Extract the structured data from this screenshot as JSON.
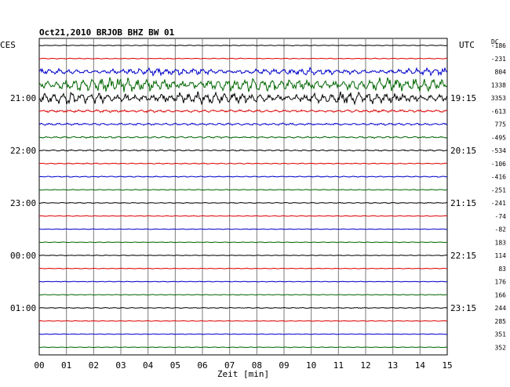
{
  "chart_data": {
    "type": "line",
    "title": "Oct21,2010   BRJOB BHZ BW 01",
    "xlabel": "Zeit [min]",
    "ylabel_left": "CES",
    "ylabel_right": "UTC",
    "dc_label": "DC",
    "x_ticks": [
      "00",
      "01",
      "02",
      "03",
      "04",
      "05",
      "06",
      "07",
      "08",
      "09",
      "10",
      "11",
      "12",
      "13",
      "14",
      "15"
    ],
    "xlim": [
      0,
      15
    ],
    "left_hour_labels": [
      {
        "row": 4,
        "label": "21:00"
      },
      {
        "row": 8,
        "label": "22:00"
      },
      {
        "row": 12,
        "label": "23:00"
      },
      {
        "row": 16,
        "label": "00:00"
      },
      {
        "row": 20,
        "label": "01:00"
      }
    ],
    "right_hour_labels": [
      {
        "row": 4,
        "label": "19:15"
      },
      {
        "row": 8,
        "label": "20:15"
      },
      {
        "row": 12,
        "label": "21:15"
      },
      {
        "row": 16,
        "label": "22:15"
      },
      {
        "row": 20,
        "label": "23:15"
      }
    ],
    "trace_colors": [
      "#000000",
      "#dd0000",
      "#0000cc",
      "#006600"
    ],
    "dc_values": [
      "-186",
      "-231",
      "804",
      "1338",
      "3353",
      "-613",
      "775",
      "-495",
      "-534",
      "-106",
      "-416",
      "-251",
      "-241",
      "-74",
      "-82",
      "183",
      "114",
      "83",
      "176",
      "166",
      "244",
      "285",
      "351",
      "352"
    ],
    "trace_amplitude": [
      0.4,
      0.5,
      3,
      6,
      5,
      1.5,
      1.2,
      1,
      0.8,
      0.6,
      0.6,
      0.5,
      0.5,
      0.4,
      0.4,
      0.4,
      0.4,
      0.4,
      0.4,
      0.4,
      0.5,
      0.4,
      0.4,
      0.4
    ],
    "grid": true
  }
}
